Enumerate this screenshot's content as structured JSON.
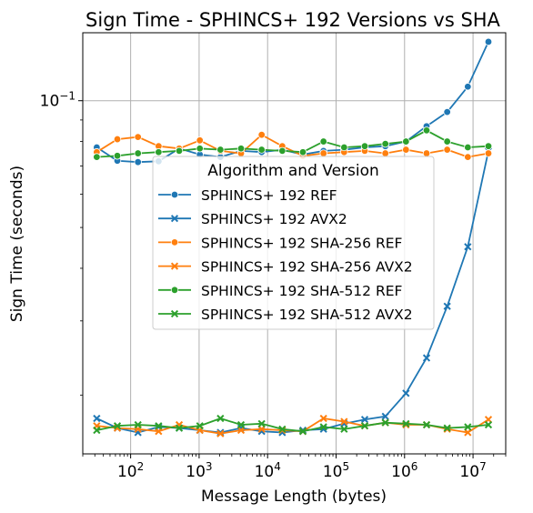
{
  "chart_data": {
    "type": "line",
    "title": "Sign Time - SPHINCS+ 192 Versions vs SHA",
    "xlabel": "Message Length (bytes)",
    "ylabel": "Sign Time (seconds)",
    "xscale": "log",
    "yscale": "log",
    "grid": true,
    "xlim": [
      20,
      30000000
    ],
    "ylim": [
      0.0145,
      0.145
    ],
    "x_ticks": [
      {
        "value": 100,
        "base": "10",
        "exp": "2"
      },
      {
        "value": 1000,
        "base": "10",
        "exp": "3"
      },
      {
        "value": 10000,
        "base": "10",
        "exp": "4"
      },
      {
        "value": 100000,
        "base": "10",
        "exp": "5"
      },
      {
        "value": 1000000,
        "base": "10",
        "exp": "6"
      },
      {
        "value": 10000000,
        "base": "10",
        "exp": "7"
      }
    ],
    "y_ticks": [
      {
        "value": 0.1,
        "base": "10",
        "exp": "−1"
      }
    ],
    "legend": {
      "title": "Algorithm and Version",
      "placement": "center"
    },
    "x": [
      32,
      64,
      128,
      256,
      512,
      1024,
      2048,
      4096,
      8192,
      16384,
      32768,
      65536,
      131072,
      262144,
      524288,
      1048576,
      2097152,
      4194304,
      8388608,
      16777216
    ],
    "series": [
      {
        "name": "SPHINCS+ 192 REF",
        "color": "#1f77b4",
        "marker": "circle",
        "values": [
          0.0775,
          0.072,
          0.0715,
          0.0718,
          0.077,
          0.0745,
          0.0735,
          0.076,
          0.0755,
          0.0765,
          0.0745,
          0.076,
          0.0765,
          0.0775,
          0.078,
          0.08,
          0.087,
          0.094,
          0.108,
          0.138
        ]
      },
      {
        "name": "SPHINCS+ 192 AVX2",
        "color": "#1f77b4",
        "marker": "x",
        "values": [
          0.0176,
          0.0167,
          0.0163,
          0.0168,
          0.0167,
          0.0165,
          0.0163,
          0.0167,
          0.0164,
          0.0163,
          0.0165,
          0.0166,
          0.0171,
          0.0175,
          0.0178,
          0.0202,
          0.0245,
          0.0325,
          0.045,
          0.076
        ]
      },
      {
        "name": "SPHINCS+ 192 SHA-256 REF",
        "color": "#ff7f0e",
        "marker": "circle",
        "values": [
          0.0755,
          0.081,
          0.082,
          0.078,
          0.077,
          0.0805,
          0.076,
          0.075,
          0.083,
          0.078,
          0.074,
          0.075,
          0.0755,
          0.076,
          0.075,
          0.0765,
          0.075,
          0.0765,
          0.0735,
          0.075
        ]
      },
      {
        "name": "SPHINCS+ 192 SHA-256 AVX2",
        "color": "#ff7f0e",
        "marker": "x",
        "values": [
          0.0169,
          0.0167,
          0.0166,
          0.0164,
          0.017,
          0.0165,
          0.0162,
          0.0165,
          0.0166,
          0.0165,
          0.0164,
          0.0176,
          0.0173,
          0.0169,
          0.0172,
          0.017,
          0.017,
          0.0166,
          0.0163,
          0.0175
        ]
      },
      {
        "name": "SPHINCS+ 192 SHA-512 REF",
        "color": "#2ca02c",
        "marker": "circle",
        "values": [
          0.0735,
          0.074,
          0.075,
          0.0755,
          0.076,
          0.077,
          0.0765,
          0.077,
          0.0765,
          0.076,
          0.0755,
          0.08,
          0.0775,
          0.078,
          0.079,
          0.08,
          0.085,
          0.08,
          0.0775,
          0.078
        ]
      },
      {
        "name": "SPHINCS+ 192 SHA-512 AVX2",
        "color": "#2ca02c",
        "marker": "x",
        "values": [
          0.0165,
          0.0169,
          0.017,
          0.0169,
          0.0167,
          0.0169,
          0.0176,
          0.017,
          0.0171,
          0.0166,
          0.0164,
          0.0168,
          0.0166,
          0.0169,
          0.0172,
          0.0171,
          0.017,
          0.0167,
          0.0168,
          0.017
        ]
      }
    ]
  }
}
